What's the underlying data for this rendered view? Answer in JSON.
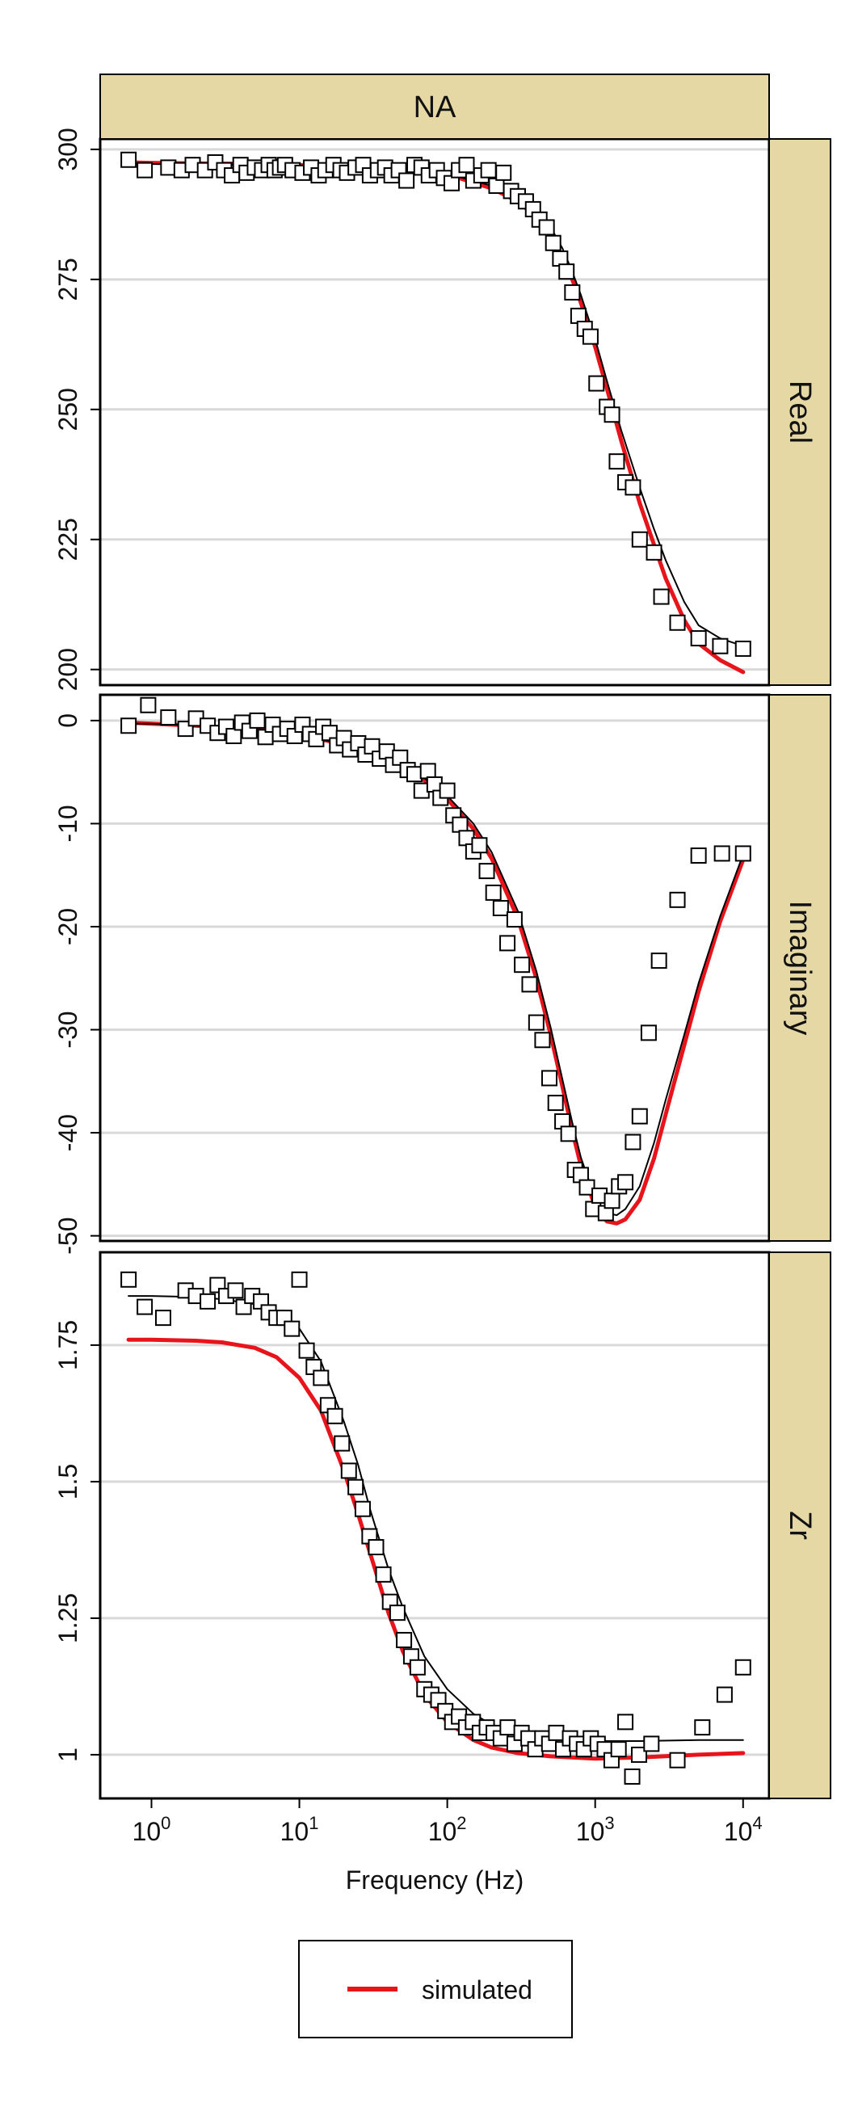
{
  "chart_data": {
    "type": "scatter",
    "layout": "three stacked panels sharing a log-scale x axis, strips on top and right",
    "top_strip": "NA",
    "xlabel": "Frequency (Hz)",
    "xscale": "log",
    "xlim": [
      0.45,
      15000
    ],
    "xticks": [
      {
        "value": 1,
        "base": "10",
        "exp": "0"
      },
      {
        "value": 10,
        "base": "10",
        "exp": "1"
      },
      {
        "value": 100,
        "base": "10",
        "exp": "2"
      },
      {
        "value": 1000,
        "base": "10",
        "exp": "3"
      },
      {
        "value": 10000,
        "base": "10",
        "exp": "4"
      }
    ],
    "legend": {
      "position": "bottom",
      "entries": [
        {
          "label": "simulated",
          "color": "#e8141c"
        }
      ]
    },
    "colors": {
      "strip_fill": "#e5d8a5",
      "simulated": "#e8141c",
      "observed_fit": "#000000",
      "gridline": "#d9d9d9"
    },
    "panels": [
      {
        "strip": "Real",
        "ylim": [
          197,
          302
        ],
        "yticks": [
          200,
          225,
          250,
          275,
          300
        ],
        "series": [
          {
            "name": "simulated",
            "style": "line",
            "x": [
              0.7,
              1,
              2,
              5,
              10,
              20,
              50,
              100,
              200,
              300,
              400,
              500,
              600,
              700,
              800,
              1000,
              1200,
              1500,
              2000,
              2500,
              3000,
              4000,
              5000,
              7000,
              10000
            ],
            "y": [
              297.5,
              297.4,
              297.3,
              297.2,
              297,
              296.8,
              296.2,
              295.2,
              292.5,
              290,
              287,
              283.5,
              279.5,
              275,
              270.5,
              262,
              254,
              244,
              232,
              224,
              217.5,
              209.5,
              205,
              201.8,
              199.5
            ]
          },
          {
            "name": "",
            "style": "thin-line",
            "x": [
              0.7,
              1,
              2,
              5,
              10,
              20,
              50,
              100,
              200,
              300,
              400,
              500,
              600,
              700,
              800,
              1000,
              1200,
              1500,
              2000,
              2500,
              3000,
              4000,
              5000,
              7000,
              10000
            ],
            "y": [
              297.2,
              297.2,
              297.1,
              297,
              296.9,
              296.6,
              296,
              295.3,
              293,
              290.5,
              288,
              285,
              281,
              276.5,
              272,
              263.5,
              255.5,
              246,
              235,
              227,
              221,
              213,
              208.5,
              206,
              204.5
            ]
          },
          {
            "name": "",
            "style": "squares",
            "x": [
              0.7,
              0.9,
              1.3,
              1.6,
              1.9,
              2.3,
              2.7,
              3.1,
              3.5,
              4.0,
              4.4,
              5.0,
              5.6,
              6.2,
              6.8,
              7.4,
              8.0,
              9.0,
              10.5,
              12,
              13.5,
              15,
              17,
              19,
              21,
              24,
              27,
              30,
              34,
              38,
              42,
              47,
              53,
              60,
              67,
              75,
              85,
              95,
              107,
              120,
              135,
              150,
              170,
              190,
              215,
              240,
              270,
              300,
              340,
              380,
              420,
              470,
              520,
              580,
              640,
              700,
              770,
              850,
              930,
              1020,
              1200,
              1300,
              1400,
              1600,
              1800,
              2000,
              2500,
              2800,
              3600,
              5000,
              7000,
              10000
            ],
            "y": [
              298,
              296,
              296.5,
              296,
              297,
              296,
              297.5,
              296,
              295,
              297,
              295.5,
              296.5,
              296,
              297,
              296,
              296.5,
              297,
              296,
              295.5,
              296.5,
              295,
              296,
              297,
              296,
              295.5,
              296.5,
              297,
              295,
              296,
              296.5,
              295,
              296,
              294,
              297,
              296.5,
              295,
              296,
              294.5,
              293.5,
              296,
              297,
              294,
              295,
              296,
              293,
              295.5,
              292,
              291,
              290,
              288.5,
              286.5,
              285,
              282,
              279,
              276.5,
              272.5,
              268,
              265.5,
              264,
              255,
              250.5,
              249,
              240,
              236,
              235,
              225,
              222.5,
              214,
              209,
              206,
              204.5,
              204
            ]
          }
        ]
      },
      {
        "strip": "Imaginary",
        "ylim": [
          -50.5,
          2.5
        ],
        "yticks": [
          -50,
          -40,
          -30,
          -20,
          -10,
          0
        ],
        "series": [
          {
            "name": "simulated",
            "style": "line",
            "x": [
              0.7,
              1,
              2,
              5,
              10,
              20,
              30,
              50,
              70,
              100,
              150,
              200,
              300,
              400,
              500,
              600,
              700,
              800,
              1000,
              1200,
              1400,
              1600,
              2000,
              2500,
              3000,
              4000,
              5000,
              7000,
              10000
            ],
            "y": [
              -0.2,
              -0.3,
              -0.5,
              -0.9,
              -1.4,
              -2.3,
              -3.1,
              -4.5,
              -5.8,
              -7.6,
              -10.5,
              -13.4,
              -19.2,
              -25,
              -30.5,
              -35.5,
              -39.8,
              -43.2,
              -47.2,
              -48.6,
              -48.8,
              -48.4,
              -46.5,
              -42.5,
              -38.2,
              -31.5,
              -26.3,
              -19.5,
              -13.5
            ]
          },
          {
            "name": "",
            "style": "thin-line",
            "x": [
              0.7,
              1,
              2,
              5,
              10,
              20,
              30,
              50,
              70,
              100,
              150,
              200,
              300,
              400,
              500,
              600,
              700,
              800,
              1000,
              1200,
              1400,
              1600,
              2000,
              2500,
              3000,
              4000,
              5000,
              7000,
              10000
            ],
            "y": [
              -0.3,
              -0.3,
              -0.5,
              -0.9,
              -1.4,
              -2.3,
              -3.1,
              -4.4,
              -5.6,
              -7.3,
              -10,
              -12.8,
              -18.5,
              -24.3,
              -29.8,
              -34.8,
              -39,
              -42.4,
              -46.4,
              -47.8,
              -48,
              -47.4,
              -45.2,
              -41,
              -36.8,
              -30.5,
              -25.5,
              -19,
              -13
            ]
          },
          {
            "name": "",
            "style": "squares",
            "x": [
              0.7,
              0.95,
              1.3,
              1.7,
              2.0,
              2.4,
              2.8,
              3.2,
              3.6,
              4.1,
              4.6,
              5.2,
              5.9,
              6.6,
              7.4,
              8.3,
              9.3,
              10.5,
              11.8,
              13,
              14.5,
              16,
              18,
              20,
              22,
              25,
              28,
              31,
              35,
              39,
              43,
              48,
              54,
              60,
              67,
              74,
              82,
              90,
              100,
              110,
              122,
              135,
              150,
              165,
              185,
              205,
              230,
              255,
              285,
              320,
              360,
              400,
              440,
              490,
              540,
              600,
              660,
              730,
              800,
              880,
              970,
              1070,
              1180,
              1300,
              1450,
              1600,
              1800,
              2000,
              2300,
              2700,
              3600,
              5000,
              7200,
              10000
            ],
            "y": [
              -0.5,
              1.5,
              0.3,
              -0.8,
              0.2,
              -0.5,
              -1.2,
              -0.6,
              -1.5,
              -0.2,
              -1,
              0,
              -1.6,
              -0.4,
              -1.3,
              -0.8,
              -1.5,
              -0.4,
              -1.3,
              -1.8,
              -0.6,
              -1.2,
              -2.4,
              -1.7,
              -2.8,
              -2.2,
              -3.3,
              -2.5,
              -3.7,
              -3,
              -4.3,
              -3.6,
              -4.8,
              -5.2,
              -6.8,
              -4.9,
              -6.2,
              -7.5,
              -6.8,
              -9.2,
              -10.1,
              -11.4,
              -12.7,
              -12.1,
              -14.6,
              -16.7,
              -18.2,
              -21.6,
              -19.3,
              -23.7,
              -25.6,
              -29.3,
              -31,
              -34.7,
              -37.1,
              -38.9,
              -40.1,
              -43.6,
              -44.1,
              -45.3,
              -47.4,
              -46.1,
              -47.8,
              -46.6,
              -45.2,
              -44.8,
              -40.9,
              -38.4,
              -30.3,
              -23.3,
              -17.4,
              -13.1,
              -12.9,
              -12.9
            ]
          }
        ]
      },
      {
        "strip": "Zr",
        "ylim": [
          0.92,
          1.92
        ],
        "yticks": [
          1.0,
          1.25,
          1.5,
          1.75
        ],
        "series": [
          {
            "name": "simulated",
            "style": "line",
            "x": [
              0.7,
              1,
              2,
              3,
              5,
              7,
              10,
              14,
              20,
              25,
              30,
              40,
              50,
              70,
              100,
              150,
              200,
              300,
              500,
              1000,
              2000,
              5000,
              10000
            ],
            "y": [
              1.76,
              1.76,
              1.758,
              1.755,
              1.745,
              1.728,
              1.69,
              1.63,
              1.52,
              1.44,
              1.37,
              1.26,
              1.19,
              1.11,
              1.06,
              1.027,
              1.013,
              1.003,
              0.997,
              0.993,
              0.995,
              1.0,
              1.003
            ]
          },
          {
            "name": "",
            "style": "thin-line",
            "x": [
              0.7,
              1,
              2,
              3,
              5,
              7,
              10,
              14,
              20,
              25,
              30,
              40,
              50,
              70,
              100,
              150,
              200,
              300,
              500,
              1000,
              2000,
              5000,
              10000
            ],
            "y": [
              1.84,
              1.84,
              1.838,
              1.834,
              1.825,
              1.81,
              1.78,
              1.72,
              1.61,
              1.53,
              1.45,
              1.34,
              1.27,
              1.18,
              1.12,
              1.075,
              1.055,
              1.04,
              1.03,
              1.025,
              1.025,
              1.027,
              1.027
            ]
          },
          {
            "name": "",
            "style": "squares",
            "x": [
              0.7,
              0.9,
              1.2,
              1.7,
              2.0,
              2.4,
              2.8,
              3.2,
              3.7,
              4.2,
              4.8,
              5.5,
              6.2,
              7.0,
              7.9,
              8.9,
              10,
              11.2,
              12.5,
              14,
              15.6,
              17.4,
              19.4,
              21.6,
              24,
              26.8,
              29.8,
              33,
              37,
              41,
              46,
              51,
              57,
              63,
              70,
              78,
              87,
              97,
              108,
              120,
              134,
              149,
              166,
              185,
              206,
              230,
              256,
              285,
              318,
              354,
              394,
              439,
              489,
              545,
              607,
              676,
              753,
              839,
              934,
              1040,
              1160,
              1290,
              1440,
              1600,
              1780,
              1980,
              2400,
              3600,
              5300,
              7500,
              10000
            ],
            "y": [
              1.87,
              1.82,
              1.8,
              1.85,
              1.84,
              1.83,
              1.86,
              1.84,
              1.85,
              1.82,
              1.84,
              1.83,
              1.81,
              1.8,
              1.8,
              1.78,
              1.87,
              1.74,
              1.71,
              1.69,
              1.64,
              1.62,
              1.57,
              1.52,
              1.49,
              1.45,
              1.4,
              1.38,
              1.33,
              1.28,
              1.26,
              1.21,
              1.18,
              1.16,
              1.12,
              1.11,
              1.1,
              1.08,
              1.06,
              1.07,
              1.05,
              1.06,
              1.04,
              1.05,
              1.04,
              1.03,
              1.05,
              1.02,
              1.04,
              1.03,
              1.01,
              1.03,
              1.02,
              1.04,
              1.01,
              1.03,
              1.02,
              1.01,
              1.03,
              1.02,
              1.01,
              0.99,
              1.01,
              1.06,
              0.96,
              1.0,
              1.02,
              0.99,
              1.05,
              1.11,
              1.16
            ]
          }
        ]
      }
    ]
  }
}
